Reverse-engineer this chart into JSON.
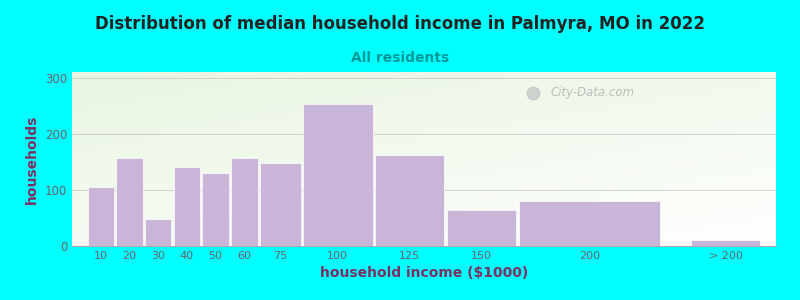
{
  "title": "Distribution of median household income in Palmyra, MO in 2022",
  "subtitle": "All residents",
  "xlabel": "household income ($1000)",
  "ylabel": "households",
  "title_fontsize": 12,
  "subtitle_fontsize": 10,
  "label_fontsize": 10,
  "title_color": "#222222",
  "subtitle_color": "#009999",
  "xlabel_color": "#7a3060",
  "ylabel_color": "#7a3060",
  "background_color": "#00FFFF",
  "bar_color": "#c8b5d8",
  "bar_edgecolor": "#ffffff",
  "categories": [
    "10",
    "20",
    "30",
    "40",
    "50",
    "60",
    "75",
    "100",
    "125",
    "150",
    "200",
    "> 200"
  ],
  "values": [
    105,
    157,
    48,
    140,
    130,
    157,
    148,
    253,
    162,
    65,
    80,
    10
  ],
  "lefts": [
    5,
    15,
    25,
    35,
    45,
    55,
    65,
    80,
    105,
    130,
    155,
    215
  ],
  "widths": [
    10,
    10,
    10,
    10,
    10,
    10,
    15,
    25,
    25,
    25,
    50,
    25
  ],
  "xlim": [
    0,
    245
  ],
  "ylim": [
    0,
    310
  ],
  "yticks": [
    0,
    100,
    200,
    300
  ],
  "watermark_text": "City-Data.com",
  "grid_color": "#cccccc",
  "plot_bg_color": "#f5faf0",
  "tick_color": "#666666"
}
